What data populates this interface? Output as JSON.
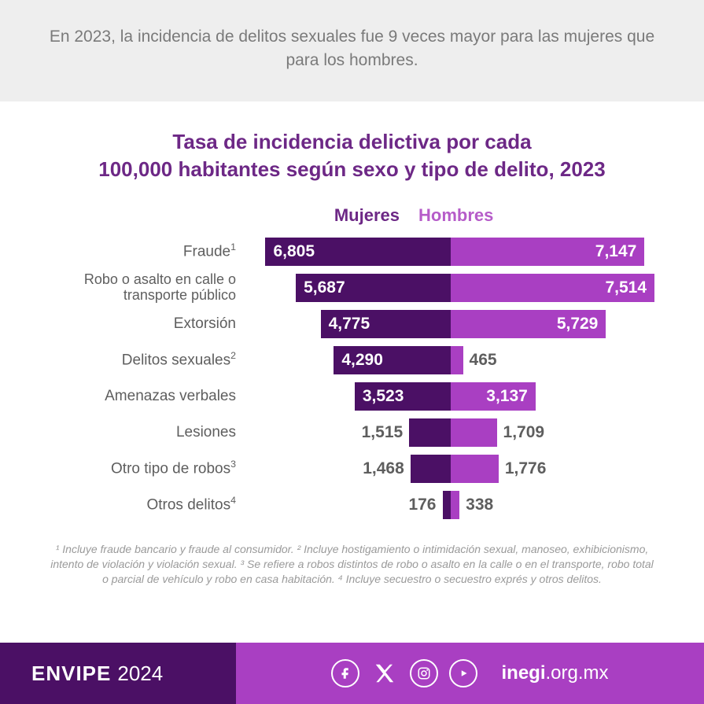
{
  "colors": {
    "intro_bg": "#eeeeee",
    "intro_text": "#7a7a7a",
    "title": "#6d2886",
    "header_mujeres": "#6d2886",
    "header_hombres": "#b65cc9",
    "bar_mujeres": "#4b1065",
    "bar_hombres": "#a93fc2",
    "row_label": "#5e5e5e",
    "value_inside": "#ffffff",
    "value_outside": "#5e5e5e",
    "footnote": "#9a9a9a",
    "footer_left_bg": "#4b1065",
    "footer_right_bg": "#a93fc2",
    "footer_text": "#ffffff"
  },
  "intro": "En 2023, la incidencia de delitos sexuales fue 9 veces mayor para las mujeres que para los hombres.",
  "title_line1": "Tasa de incidencia delictiva por cada",
  "title_line2": "100,000 habitantes según sexo y tipo de delito, 2023",
  "chart": {
    "type": "diverging-bar",
    "max_value": 7600,
    "header_left": "Mujeres",
    "header_right": "Hombres",
    "label_threshold": 2500,
    "rows": [
      {
        "label": "Fraude",
        "sup": "1",
        "mujeres": 6805,
        "mujeres_label": "6,805",
        "hombres": 7147,
        "hombres_label": "7,147"
      },
      {
        "label": "Robo o asalto en calle o transporte público",
        "sup": "",
        "two_line": true,
        "mujeres": 5687,
        "mujeres_label": "5,687",
        "hombres": 7514,
        "hombres_label": "7,514"
      },
      {
        "label": "Extorsión",
        "sup": "",
        "mujeres": 4775,
        "mujeres_label": "4,775",
        "hombres": 5729,
        "hombres_label": "5,729"
      },
      {
        "label": "Delitos sexuales",
        "sup": "2",
        "mujeres": 4290,
        "mujeres_label": "4,290",
        "hombres": 465,
        "hombres_label": "465"
      },
      {
        "label": "Amenazas verbales",
        "sup": "",
        "mujeres": 3523,
        "mujeres_label": "3,523",
        "hombres": 3137,
        "hombres_label": "3,137"
      },
      {
        "label": "Lesiones",
        "sup": "",
        "mujeres": 1515,
        "mujeres_label": "1,515",
        "hombres": 1709,
        "hombres_label": "1,709"
      },
      {
        "label": "Otro tipo de robos",
        "sup": "3",
        "mujeres": 1468,
        "mujeres_label": "1,468",
        "hombres": 1776,
        "hombres_label": "1,776"
      },
      {
        "label": "Otros delitos",
        "sup": "4",
        "mujeres": 176,
        "mujeres_label": "176",
        "hombres": 338,
        "hombres_label": "338"
      }
    ]
  },
  "footnotes": "¹ Incluye fraude bancario y fraude al consumidor. ² Incluye hostigamiento o intimidación sexual, manoseo, exhibicionismo, intento de violación y violación sexual. ³ Se refiere a robos distintos de robo o asalto en la calle o en el transporte, robo total o parcial de vehículo y robo en casa habitación. ⁴ Incluye secuestro o secuestro exprés y otros delitos.",
  "footer": {
    "brand": "ENVIPE",
    "year": "2024",
    "site_bold": "inegi",
    "site_rest": ".org.mx"
  }
}
